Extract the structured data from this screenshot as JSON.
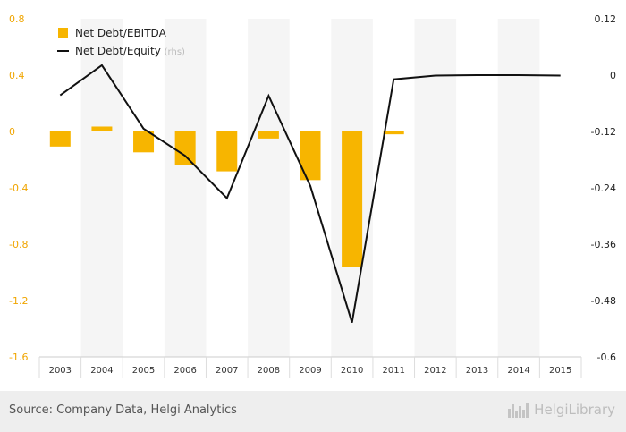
{
  "chart_data": {
    "type": "bar+line",
    "categories": [
      "2003",
      "2004",
      "2005",
      "2006",
      "2007",
      "2008",
      "2009",
      "2010",
      "2011",
      "2012",
      "2013",
      "2014",
      "2015"
    ],
    "series": [
      {
        "name": "Net Debt/EBITDA",
        "type": "bar",
        "axis": "left",
        "color": "#f7b500",
        "values": [
          -0.107,
          0.035,
          -0.148,
          -0.24,
          -0.283,
          -0.05,
          -0.345,
          -0.965,
          -0.02,
          null,
          null,
          null,
          null
        ]
      },
      {
        "name": "Net Debt/Equity",
        "type": "line",
        "axis": "right",
        "color": "#111111",
        "values": [
          -0.043,
          0.021,
          -0.114,
          -0.172,
          -0.262,
          -0.044,
          -0.236,
          -0.527,
          -0.009,
          -0.001,
          0.0,
          0.0,
          -0.001
        ]
      }
    ],
    "legend": {
      "position": "top-left",
      "rhs_suffix": "(rhs)"
    },
    "left_axis": {
      "min": -1.6,
      "max": 0.8,
      "ticks": [
        0.8,
        0.4,
        0,
        -0.4,
        -0.8,
        -1.2,
        -1.6
      ],
      "tick_labels": [
        "0.8",
        "0.4",
        "0",
        "-0.4",
        "-0.8",
        "-1.2",
        "-1.6"
      ],
      "color": "#f0a500"
    },
    "right_axis": {
      "min": -0.6,
      "max": 0.12,
      "ticks": [
        0.12,
        0,
        -0.12,
        -0.24,
        -0.36,
        -0.48,
        -0.6
      ],
      "tick_labels": [
        "0.12",
        "0",
        "-0.12",
        "-0.24",
        "-0.36",
        "-0.48",
        "-0.6"
      ],
      "color": "#222222"
    },
    "grid": false
  },
  "footer": {
    "source": "Source: Company Data, Helgi Analytics",
    "brand": "HelgiLibrary",
    "brand_icon": "city-skyline-icon"
  }
}
